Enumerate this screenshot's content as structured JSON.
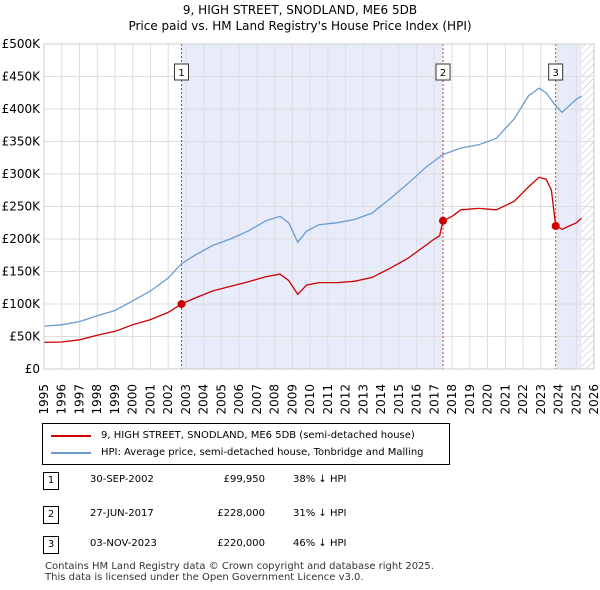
{
  "chart_data": {
    "type": "line",
    "title": "9, HIGH STREET, SNODLAND, ME6 5DB",
    "subtitle": "Price paid vs. HM Land Registry's House Price Index (HPI)",
    "xlim": [
      1995,
      2026
    ],
    "ylim": [
      0,
      500000
    ],
    "x_ticks": [
      "1995",
      "1996",
      "1997",
      "1998",
      "1999",
      "2000",
      "2001",
      "2002",
      "2003",
      "2004",
      "2005",
      "2006",
      "2007",
      "2008",
      "2009",
      "2010",
      "2011",
      "2012",
      "2013",
      "2014",
      "2015",
      "2016",
      "2017",
      "2018",
      "2019",
      "2020",
      "2021",
      "2022",
      "2023",
      "2024",
      "2025",
      "2026"
    ],
    "y_ticks": [
      {
        "value": 0,
        "label": "£0"
      },
      {
        "value": 50000,
        "label": "£50K"
      },
      {
        "value": 100000,
        "label": "£100K"
      },
      {
        "value": 150000,
        "label": "£150K"
      },
      {
        "value": 200000,
        "label": "£200K"
      },
      {
        "value": 250000,
        "label": "£250K"
      },
      {
        "value": 300000,
        "label": "£300K"
      },
      {
        "value": 350000,
        "label": "£350K"
      },
      {
        "value": 400000,
        "label": "£400K"
      },
      {
        "value": 450000,
        "label": "£450K"
      },
      {
        "value": 500000,
        "label": "£500K"
      }
    ],
    "series": [
      {
        "name": "9, HIGH STREET, SNODLAND, ME6 5DB (semi-detached house)",
        "color": "#cc0000",
        "points": [
          [
            1995.0,
            41000
          ],
          [
            1996.0,
            41500
          ],
          [
            1997.0,
            45000
          ],
          [
            1998.0,
            52000
          ],
          [
            1999.0,
            58000
          ],
          [
            2000.0,
            68000
          ],
          [
            2001.0,
            76000
          ],
          [
            2002.0,
            87000
          ],
          [
            2002.75,
            99950
          ],
          [
            2003.5,
            109000
          ],
          [
            2004.5,
            120000
          ],
          [
            2005.5,
            127000
          ],
          [
            2006.5,
            134000
          ],
          [
            2007.5,
            142000
          ],
          [
            2008.3,
            146000
          ],
          [
            2008.8,
            136000
          ],
          [
            2009.3,
            115000
          ],
          [
            2009.8,
            129000
          ],
          [
            2010.5,
            133000
          ],
          [
            2011.5,
            133000
          ],
          [
            2012.5,
            135000
          ],
          [
            2013.5,
            141000
          ],
          [
            2014.5,
            155000
          ],
          [
            2015.5,
            170000
          ],
          [
            2016.5,
            190000
          ],
          [
            2017.0,
            200000
          ],
          [
            2017.3,
            205000
          ],
          [
            2017.49,
            228000
          ],
          [
            2018.0,
            235000
          ],
          [
            2018.5,
            245000
          ],
          [
            2019.5,
            247000
          ],
          [
            2020.5,
            245000
          ],
          [
            2021.5,
            258000
          ],
          [
            2022.3,
            280000
          ],
          [
            2022.9,
            295000
          ],
          [
            2023.3,
            292000
          ],
          [
            2023.6,
            275000
          ],
          [
            2023.84,
            220000
          ],
          [
            2024.2,
            215000
          ],
          [
            2024.6,
            220000
          ],
          [
            2025.0,
            225000
          ],
          [
            2025.3,
            232000
          ]
        ]
      },
      {
        "name": "HPI: Average price, semi-detached house, Tonbridge and Malling",
        "color": "#6b9bd2",
        "points": [
          [
            1995.0,
            66000
          ],
          [
            1996.0,
            68000
          ],
          [
            1997.0,
            73000
          ],
          [
            1998.0,
            82000
          ],
          [
            1999.0,
            90000
          ],
          [
            2000.0,
            105000
          ],
          [
            2001.0,
            120000
          ],
          [
            2002.0,
            140000
          ],
          [
            2002.75,
            162000
          ],
          [
            2003.5,
            175000
          ],
          [
            2004.5,
            190000
          ],
          [
            2005.5,
            200000
          ],
          [
            2006.5,
            212000
          ],
          [
            2007.5,
            228000
          ],
          [
            2008.3,
            235000
          ],
          [
            2008.8,
            225000
          ],
          [
            2009.3,
            195000
          ],
          [
            2009.8,
            212000
          ],
          [
            2010.5,
            222000
          ],
          [
            2011.5,
            225000
          ],
          [
            2012.5,
            230000
          ],
          [
            2013.5,
            240000
          ],
          [
            2014.5,
            262000
          ],
          [
            2015.5,
            285000
          ],
          [
            2016.5,
            310000
          ],
          [
            2017.0,
            320000
          ],
          [
            2017.49,
            330000
          ],
          [
            2018.0,
            335000
          ],
          [
            2018.5,
            340000
          ],
          [
            2019.5,
            345000
          ],
          [
            2020.5,
            355000
          ],
          [
            2021.5,
            385000
          ],
          [
            2022.3,
            420000
          ],
          [
            2022.9,
            432000
          ],
          [
            2023.3,
            425000
          ],
          [
            2023.84,
            405000
          ],
          [
            2024.2,
            395000
          ],
          [
            2024.6,
            405000
          ],
          [
            2025.0,
            415000
          ],
          [
            2025.3,
            420000
          ]
        ]
      }
    ],
    "sales": [
      {
        "num": "1",
        "year": 2002.75,
        "value": 99950
      },
      {
        "num": "2",
        "year": 2017.49,
        "value": 228000
      },
      {
        "num": "3",
        "year": 2023.84,
        "value": 220000
      }
    ],
    "shaded_ranges": [
      [
        2002.75,
        2017.49
      ],
      [
        2023.84,
        2025.3
      ]
    ],
    "hatched_range": [
      2025.3,
      2026
    ]
  },
  "legend": {
    "property_label": "9, HIGH STREET, SNODLAND, ME6 5DB (semi-detached house)",
    "hpi_label": "HPI: Average price, semi-detached house, Tonbridge and Malling",
    "property_color": "#cc0000",
    "hpi_color": "#6b9bd2"
  },
  "transactions": [
    {
      "num": "1",
      "date": "30-SEP-2002",
      "price": "£99,950",
      "hpi": "38% ↓ HPI"
    },
    {
      "num": "2",
      "date": "27-JUN-2017",
      "price": "£228,000",
      "hpi": "31% ↓ HPI"
    },
    {
      "num": "3",
      "date": "03-NOV-2023",
      "price": "£220,000",
      "hpi": "46% ↓ HPI"
    }
  ],
  "footer": {
    "line1": "Contains HM Land Registry data © Crown copyright and database right 2025.",
    "line2": "This data is licensed under the Open Government Licence v3.0."
  }
}
